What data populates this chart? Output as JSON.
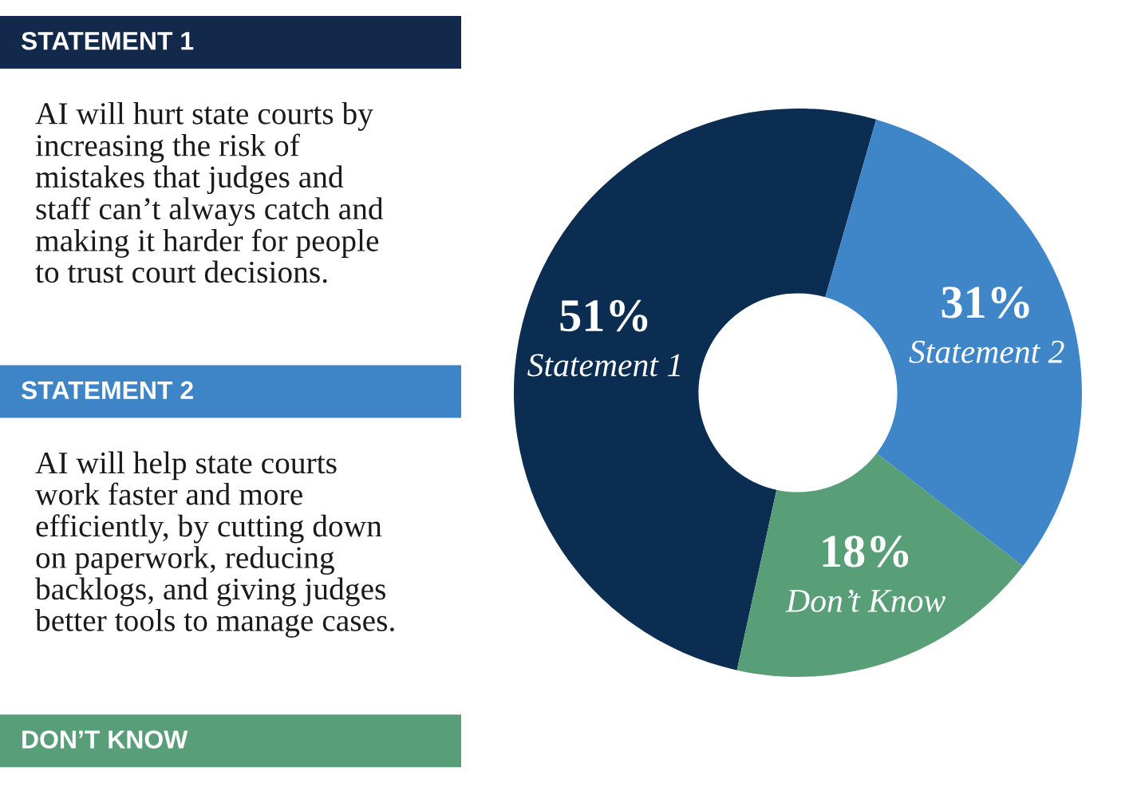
{
  "chart_data": [
    {
      "type": "other",
      "categories": [
        "STATEMENT 1",
        "STATEMENT 2",
        "DON’T KNOW"
      ],
      "colors": [
        "#13294b",
        "#3d85c6",
        "#579e79"
      ],
      "annotations": [
        "AI will hurt state courts by\nincreasing the risk of\nmistakes that judges and\nstaff can’t always catch and\nmaking it harder for people\nto trust court decisions.",
        "AI will help state courts\nwork faster and more\nefficiently, by cutting down\non paperwork, reducing\nbacklogs, and giving judges\nbetter tools to manage cases."
      ]
    },
    {
      "type": "donut",
      "categories": [
        "Statement 1",
        "Statement 2",
        "Don’t Know"
      ],
      "values": [
        51,
        31,
        18
      ],
      "value_labels": [
        "51%",
        "31%",
        "18%"
      ],
      "colors": [
        "#0b2d51",
        "#3f86c8",
        "#589f78"
      ]
    }
  ]
}
